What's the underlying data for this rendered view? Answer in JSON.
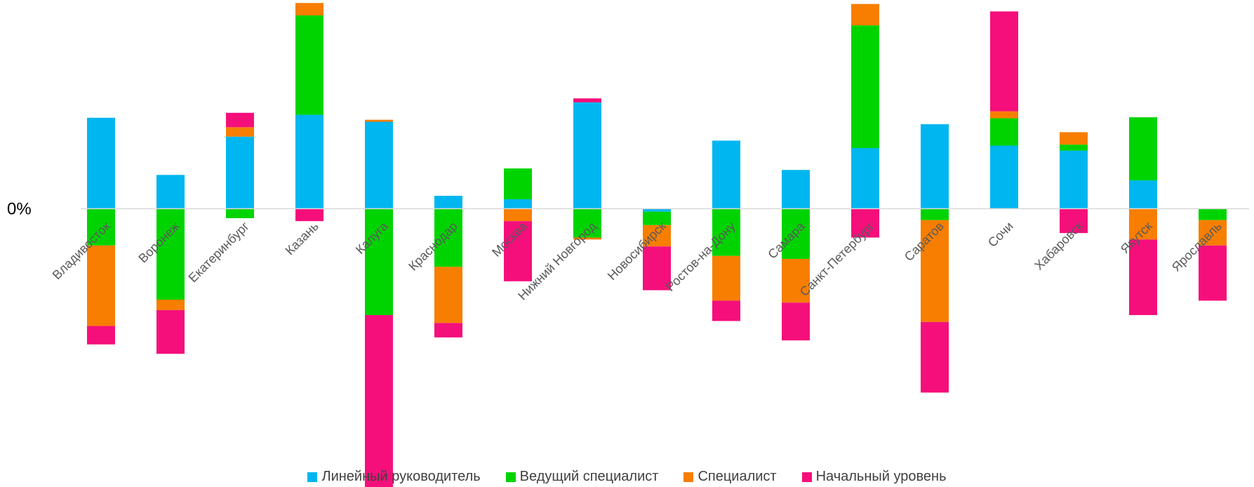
{
  "chart_data": {
    "type": "bar",
    "stacked": true,
    "zero_label": "0%",
    "categories": [
      "Владивосток",
      "Воронеж",
      "Екатеринбург",
      "Казань",
      "Калуга",
      "Краснодар",
      "Москва",
      "Нижний Новгород",
      "Новосибирск",
      "Ростов-на-Дону",
      "Самара",
      "Санкт-Петербург",
      "Саратов",
      "Сочи",
      "Хабаровск",
      "Якутск",
      "Ярославль"
    ],
    "series": [
      {
        "name": "Линейный руководитель",
        "color": "#00B6F0",
        "values": [
          18.3,
          6.8,
          14.5,
          18.9,
          17.5,
          2.6,
          1.9,
          21.4,
          -0.6,
          13.7,
          7.8,
          12.2,
          17.0,
          12.7,
          11.7,
          5.7,
          0
        ]
      },
      {
        "name": "Ведущий специалист",
        "color": "#00D400",
        "values": [
          -7.4,
          -18.3,
          -1.9,
          20.0,
          -21.4,
          -11.7,
          6.2,
          -5.8,
          -2.7,
          -9.5,
          -10.1,
          24.7,
          -2.3,
          5.5,
          1.2,
          12.7,
          -2.3
        ]
      },
      {
        "name": "Специалист",
        "color": "#F77E00",
        "values": [
          -16.2,
          -2.1,
          1.9,
          2.5,
          0.4,
          -11.3,
          -2.5,
          -0.4,
          -4.3,
          -9.0,
          -8.8,
          4.3,
          -20.5,
          1.4,
          2.5,
          -6.2,
          -5.1
        ]
      },
      {
        "name": "Начальный уровень",
        "color": "#F50F7B",
        "values": [
          -3.7,
          -8.8,
          2.9,
          -2.5,
          -35.4,
          -2.9,
          -12.1,
          0.8,
          -8.8,
          -4.1,
          -7.6,
          -5.8,
          -14.2,
          20.1,
          -4.9,
          -15.2,
          -11.1
        ]
      }
    ],
    "ylim": [
      -56,
      42
    ],
    "legend_position": "bottom"
  }
}
